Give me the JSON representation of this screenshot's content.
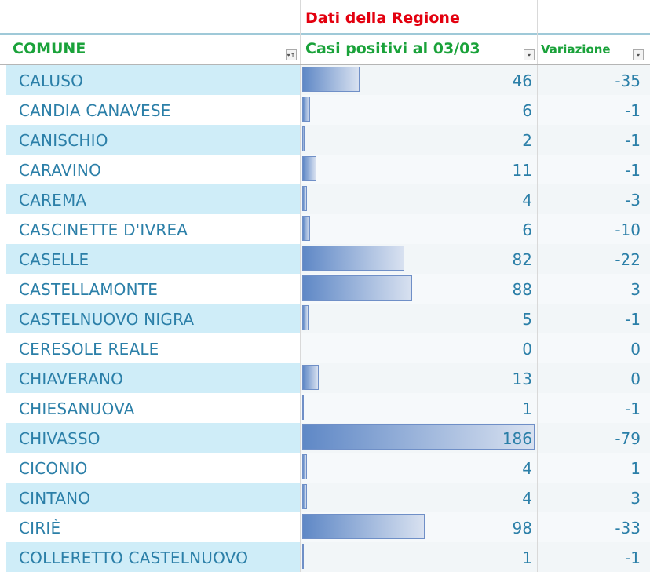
{
  "header": {
    "group_title": "Dati della Regione",
    "col_comune": "COMUNE",
    "col_casi": "Casi positivi al 03/03",
    "col_variazione": "Variazione"
  },
  "colors": {
    "group_title": "#e3000f",
    "header_text": "#1aa23a",
    "cell_text": "#2b7fa8",
    "band": "#cfedf8",
    "data_bar": "#5f88c6"
  },
  "rows": [
    {
      "comune": "CALUSO",
      "casi": 46,
      "variazione": -35
    },
    {
      "comune": "CANDIA CANAVESE",
      "casi": 6,
      "variazione": -1
    },
    {
      "comune": "CANISCHIO",
      "casi": 2,
      "variazione": -1
    },
    {
      "comune": "CARAVINO",
      "casi": 11,
      "variazione": -1
    },
    {
      "comune": "CAREMA",
      "casi": 4,
      "variazione": -3
    },
    {
      "comune": "CASCINETTE D'IVREA",
      "casi": 6,
      "variazione": -10
    },
    {
      "comune": "CASELLE",
      "casi": 82,
      "variazione": -22
    },
    {
      "comune": "CASTELLAMONTE",
      "casi": 88,
      "variazione": 3
    },
    {
      "comune": "CASTELNUOVO NIGRA",
      "casi": 5,
      "variazione": -1
    },
    {
      "comune": "CERESOLE REALE",
      "casi": 0,
      "variazione": 0
    },
    {
      "comune": "CHIAVERANO",
      "casi": 13,
      "variazione": 0
    },
    {
      "comune": "CHIESANUOVA",
      "casi": 1,
      "variazione": -1
    },
    {
      "comune": "CHIVASSO",
      "casi": 186,
      "variazione": -79
    },
    {
      "comune": "CICONIO",
      "casi": 4,
      "variazione": 1
    },
    {
      "comune": "CINTANO",
      "casi": 4,
      "variazione": 3
    },
    {
      "comune": "CIRIÈ",
      "casi": 98,
      "variazione": -33
    },
    {
      "comune": "COLLERETTO CASTELNUOVO",
      "casi": 1,
      "variazione": -1
    }
  ]
}
